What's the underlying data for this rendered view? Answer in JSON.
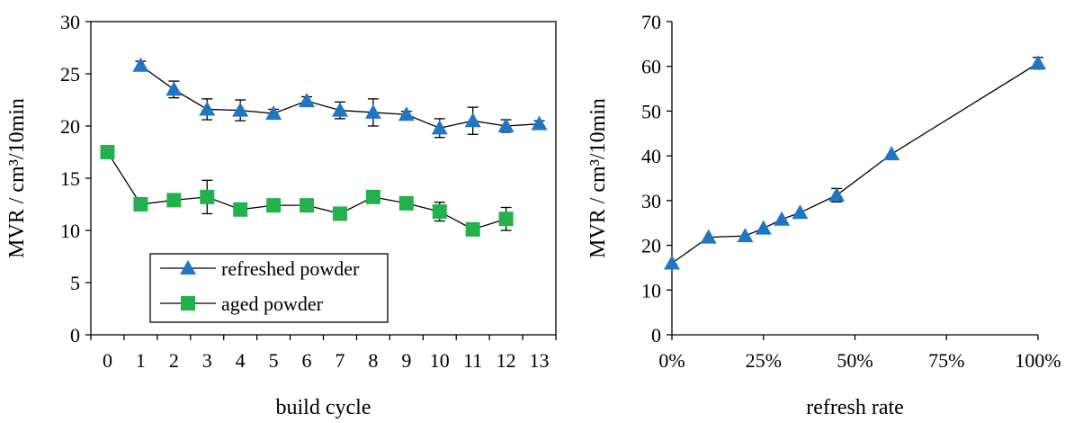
{
  "chart_data": [
    {
      "type": "line",
      "xlabel": "build cycle",
      "ylabel": "MVR / cm³/10min",
      "ylim": [
        0,
        30
      ],
      "yticks": [
        0,
        5,
        10,
        15,
        20,
        25,
        30
      ],
      "xlim": [
        -0.5,
        13.5
      ],
      "xticks": [
        0,
        1,
        2,
        3,
        4,
        5,
        6,
        7,
        8,
        9,
        10,
        11,
        12,
        13
      ],
      "grid": false,
      "legend": "bottom-left",
      "series": [
        {
          "name": "refreshed powder",
          "marker": "triangle",
          "color": "#1f77c4",
          "x": [
            1,
            2,
            3,
            4,
            5,
            6,
            7,
            8,
            9,
            10,
            11,
            12,
            13
          ],
          "y": [
            25.8,
            23.5,
            21.6,
            21.5,
            21.2,
            22.4,
            21.5,
            21.3,
            21.1,
            19.8,
            20.5,
            20.0,
            20.2
          ],
          "err": [
            0.4,
            0.8,
            1.0,
            1.0,
            0.4,
            0.4,
            0.8,
            1.3,
            0.3,
            0.9,
            1.3,
            0.6,
            0.3
          ]
        },
        {
          "name": "aged powder",
          "marker": "square",
          "color": "#22b14c",
          "x": [
            0,
            1,
            2,
            3,
            4,
            5,
            6,
            7,
            8,
            9,
            10,
            11,
            12
          ],
          "y": [
            17.5,
            12.5,
            12.9,
            13.2,
            12.0,
            12.4,
            12.4,
            11.6,
            13.2,
            12.6,
            11.8,
            10.1,
            11.1
          ],
          "err": [
            0,
            0,
            0,
            1.6,
            0,
            0,
            0,
            0,
            0,
            0,
            0.9,
            0,
            1.1
          ]
        }
      ]
    },
    {
      "type": "line",
      "xlabel": "refresh rate",
      "ylabel": "MVR / cm³/10min",
      "ylim": [
        0,
        70
      ],
      "yticks": [
        0,
        10,
        20,
        30,
        40,
        50,
        60,
        70
      ],
      "xlim": [
        0,
        100
      ],
      "xticks": [
        0,
        25,
        50,
        75,
        100
      ],
      "xticklabels": [
        "0%",
        "25%",
        "50%",
        "75%",
        "100%"
      ],
      "grid": false,
      "series": [
        {
          "marker": "triangle",
          "color": "#1f77c4",
          "x": [
            0,
            10,
            20,
            25,
            30,
            35,
            45,
            60,
            100
          ],
          "y": [
            16.0,
            21.8,
            22.1,
            23.8,
            25.8,
            27.3,
            31.2,
            40.4,
            60.7
          ],
          "err": [
            0,
            0,
            0,
            0,
            0,
            0,
            1.5,
            0,
            1.3
          ]
        }
      ]
    }
  ]
}
